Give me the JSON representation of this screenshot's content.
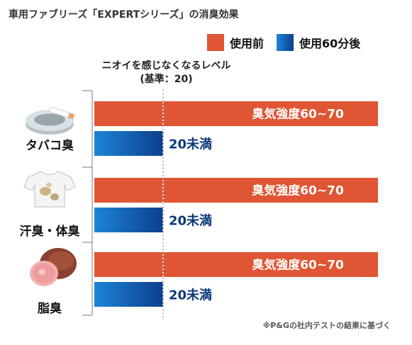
{
  "title": "車用ファブリーズ「EXPERTシリーズ」の消臭効果",
  "legend": [
    {
      "label": "使用前",
      "color": "#e05533"
    },
    {
      "label": "使用60分後",
      "color": "#0c3f8d"
    }
  ],
  "threshold_label": [
    "ニオイを感じなくなるレベル",
    "(基準：20)"
  ],
  "footnote": "※P&Gの社内テストの結果に基づく",
  "chart_data": {
    "type": "bar",
    "orientation": "horizontal",
    "categories": [
      "タバコ臭",
      "汗臭・体臭",
      "脂臭"
    ],
    "series": [
      {
        "name": "使用前",
        "values": [
          65,
          65,
          65
        ],
        "labels": [
          "臭気強度60~70",
          "臭気強度60~70",
          "臭気強度60~70"
        ],
        "color": "#e05533"
      },
      {
        "name": "使用60分後",
        "values": [
          20,
          20,
          20
        ],
        "labels": [
          "20未満",
          "20未満",
          "20未満"
        ],
        "color": "#0c3f8d"
      }
    ],
    "threshold": 20,
    "icons": [
      "ashtray-cigarette-icon",
      "stained-tshirt-icon",
      "ham-icon"
    ]
  }
}
